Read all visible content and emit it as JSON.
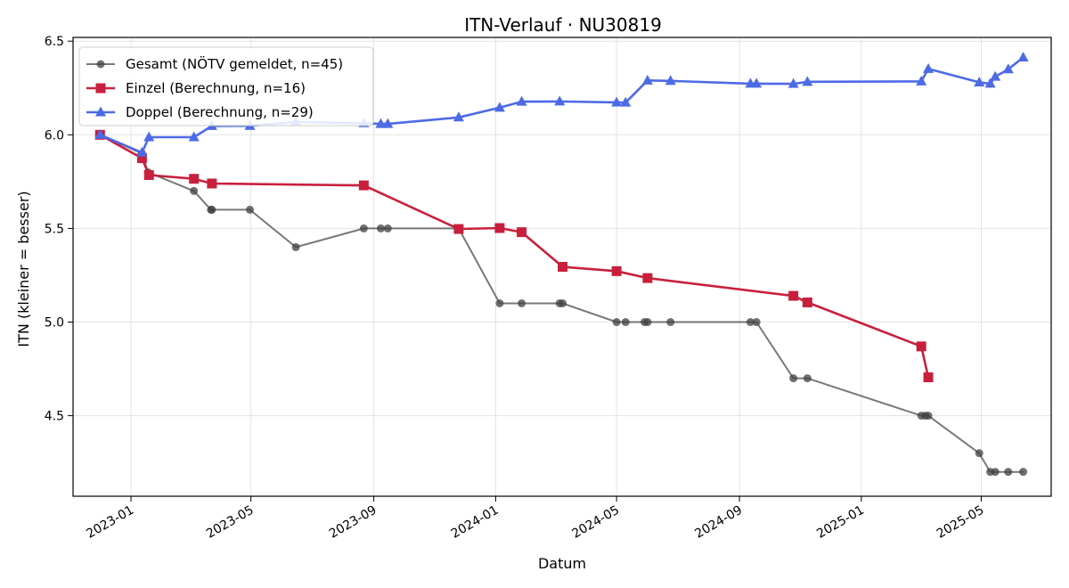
{
  "chart_data": {
    "type": "line",
    "title": "ITN-Verlauf · NU30819",
    "xlabel": "Datum",
    "ylabel": "ITN  (kleiner = besser)",
    "xlim": [
      "2022-11-04",
      "2025-07-10"
    ],
    "ylim": [
      4.07,
      6.52
    ],
    "x_ticks": [
      {
        "date": "2023-01-01",
        "label": "2023-01"
      },
      {
        "date": "2023-05-01",
        "label": "2023-05"
      },
      {
        "date": "2023-09-01",
        "label": "2023-09"
      },
      {
        "date": "2024-01-01",
        "label": "2024-01"
      },
      {
        "date": "2024-05-01",
        "label": "2024-05"
      },
      {
        "date": "2024-09-01",
        "label": "2024-09"
      },
      {
        "date": "2025-01-01",
        "label": "2025-01"
      },
      {
        "date": "2025-05-01",
        "label": "2025-05"
      }
    ],
    "y_ticks": [
      {
        "value": 4.5,
        "label": "4.5"
      },
      {
        "value": 5.0,
        "label": "5.0"
      },
      {
        "value": 5.5,
        "label": "5.5"
      },
      {
        "value": 6.0,
        "label": "6.0"
      },
      {
        "value": 6.5,
        "label": "6.5"
      }
    ],
    "grid": true,
    "legend_position": "top-left",
    "series": [
      {
        "name": "Gesamt (NÖTV gemeldet, n=45)",
        "color": "#404040",
        "marker": "circle",
        "points": [
          {
            "x": "2022-12-01",
            "y": 6.0
          },
          {
            "x": "2023-01-12",
            "y": 5.9
          },
          {
            "x": "2023-01-18",
            "y": 5.8
          },
          {
            "x": "2023-03-05",
            "y": 5.7
          },
          {
            "x": "2023-03-22",
            "y": 5.6
          },
          {
            "x": "2023-03-23",
            "y": 5.6
          },
          {
            "x": "2023-04-30",
            "y": 5.6
          },
          {
            "x": "2023-06-15",
            "y": 5.4
          },
          {
            "x": "2023-08-22",
            "y": 5.5
          },
          {
            "x": "2023-09-08",
            "y": 5.5
          },
          {
            "x": "2023-09-15",
            "y": 5.5
          },
          {
            "x": "2023-11-25",
            "y": 5.5
          },
          {
            "x": "2024-01-05",
            "y": 5.1
          },
          {
            "x": "2024-01-27",
            "y": 5.1
          },
          {
            "x": "2024-03-05",
            "y": 5.1
          },
          {
            "x": "2024-03-08",
            "y": 5.1
          },
          {
            "x": "2024-05-01",
            "y": 5.0
          },
          {
            "x": "2024-05-10",
            "y": 5.0
          },
          {
            "x": "2024-05-29",
            "y": 5.0
          },
          {
            "x": "2024-06-01",
            "y": 5.0
          },
          {
            "x": "2024-06-24",
            "y": 5.0
          },
          {
            "x": "2024-09-12",
            "y": 5.0
          },
          {
            "x": "2024-09-18",
            "y": 5.0
          },
          {
            "x": "2024-10-25",
            "y": 4.7
          },
          {
            "x": "2024-11-08",
            "y": 4.7
          },
          {
            "x": "2025-03-02",
            "y": 4.5
          },
          {
            "x": "2025-03-06",
            "y": 4.5
          },
          {
            "x": "2025-03-09",
            "y": 4.5
          },
          {
            "x": "2025-04-29",
            "y": 4.3
          },
          {
            "x": "2025-05-10",
            "y": 4.2
          },
          {
            "x": "2025-05-15",
            "y": 4.2
          },
          {
            "x": "2025-05-28",
            "y": 4.2
          },
          {
            "x": "2025-06-12",
            "y": 4.2
          }
        ]
      },
      {
        "name": "Einzel (Berechnung, n=16)",
        "color": "#c8203c",
        "marker": "square",
        "points": [
          {
            "x": "2022-12-01",
            "y": 6.0
          },
          {
            "x": "2023-01-12",
            "y": 5.875
          },
          {
            "x": "2023-01-19",
            "y": 5.785
          },
          {
            "x": "2023-03-05",
            "y": 5.765
          },
          {
            "x": "2023-03-23",
            "y": 5.74
          },
          {
            "x": "2023-08-22",
            "y": 5.73
          },
          {
            "x": "2023-11-25",
            "y": 5.497
          },
          {
            "x": "2024-01-05",
            "y": 5.502
          },
          {
            "x": "2024-01-27",
            "y": 5.48
          },
          {
            "x": "2024-03-08",
            "y": 5.295
          },
          {
            "x": "2024-05-01",
            "y": 5.272
          },
          {
            "x": "2024-06-01",
            "y": 5.235
          },
          {
            "x": "2024-10-25",
            "y": 5.14
          },
          {
            "x": "2024-11-08",
            "y": 5.105
          },
          {
            "x": "2025-03-02",
            "y": 4.87
          },
          {
            "x": "2025-03-09",
            "y": 4.705
          }
        ]
      },
      {
        "name": "Doppel (Berechnung, n=29)",
        "color": "#4d6ae6",
        "marker": "triangle",
        "points": [
          {
            "x": "2022-12-01",
            "y": 6.0
          },
          {
            "x": "2023-01-12",
            "y": 5.905
          },
          {
            "x": "2023-01-19",
            "y": 5.987
          },
          {
            "x": "2023-03-05",
            "y": 5.987
          },
          {
            "x": "2023-03-23",
            "y": 6.047
          },
          {
            "x": "2023-04-30",
            "y": 6.048
          },
          {
            "x": "2023-06-15",
            "y": 6.068
          },
          {
            "x": "2023-08-22",
            "y": 6.062
          },
          {
            "x": "2023-09-08",
            "y": 6.058
          },
          {
            "x": "2023-09-15",
            "y": 6.058
          },
          {
            "x": "2023-11-25",
            "y": 6.093
          },
          {
            "x": "2024-01-05",
            "y": 6.145
          },
          {
            "x": "2024-01-27",
            "y": 6.177
          },
          {
            "x": "2024-03-05",
            "y": 6.178
          },
          {
            "x": "2024-05-01",
            "y": 6.173
          },
          {
            "x": "2024-05-10",
            "y": 6.172
          },
          {
            "x": "2024-06-01",
            "y": 6.29
          },
          {
            "x": "2024-06-24",
            "y": 6.288
          },
          {
            "x": "2024-09-12",
            "y": 6.273
          },
          {
            "x": "2024-09-18",
            "y": 6.273
          },
          {
            "x": "2024-10-25",
            "y": 6.272
          },
          {
            "x": "2024-11-08",
            "y": 6.283
          },
          {
            "x": "2025-03-02",
            "y": 6.285
          },
          {
            "x": "2025-03-09",
            "y": 6.352
          },
          {
            "x": "2025-04-29",
            "y": 6.28
          },
          {
            "x": "2025-05-10",
            "y": 6.273
          },
          {
            "x": "2025-05-15",
            "y": 6.31
          },
          {
            "x": "2025-05-28",
            "y": 6.35
          },
          {
            "x": "2025-06-12",
            "y": 6.413
          }
        ]
      }
    ]
  }
}
